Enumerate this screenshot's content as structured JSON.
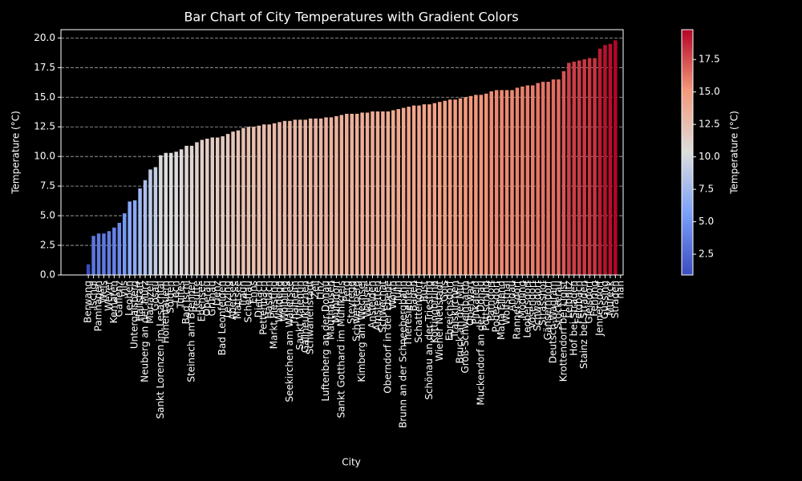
{
  "chart_data": {
    "type": "bar",
    "title": "Bar Chart of City Temperatures with Gradient Colors",
    "x_label": "City",
    "y_label": "Temperature (°C)",
    "categories": [
      "Berwang",
      "Ischgl",
      "Pamhagen",
      "Wels",
      "Weyer",
      "Kematen",
      "Gaflenz",
      "Vils",
      "Leoben",
      "Untergaisberg",
      "Hallstatt",
      "Neuberg an der Mürz",
      "Mariazell",
      "Gosau",
      "Sankt Lorenzen im Lesachtal",
      "Hohentauern",
      "Sölden",
      "Lech",
      "Tulfes",
      "Bad Ischl",
      "Steinach am Brenner",
      "Reutte",
      "Ebensee",
      "Oberau",
      "Grünau",
      "Lienz",
      "Bad Leonfelden",
      "Lenzing",
      "Abersee",
      "Mattsee",
      "Traun",
      "Scheffau",
      "Enns",
      "Dietach",
      "Pettenbach",
      "Haslach",
      "Markt Piesting",
      "Waldegg",
      "Wölbling",
      "Seekirchen am Wallersee",
      "Thalheim",
      "Sankt Valentin",
      "Gallneukirchen",
      "Schwanenstadt",
      "Zell",
      "Linz",
      "Luftenberg an der Donau",
      "Mauthausen",
      "Mühldorf",
      "Sankt Gotthard im Mühlkreis",
      "Perg",
      "Steyregg",
      "Schwertberg",
      "Kimberg am Wechsel",
      "Wallsee",
      "Ansfelden",
      "Amstetten",
      "Schwechat",
      "Oberndorf in der Ebene",
      "Wörth",
      "Tulln",
      "Brunn an der Schneebergbahn",
      "Theresienfeld",
      "Baden",
      "Schattendorf",
      "Rust",
      "Schönau an der Triesting",
      "Kottingbrunn",
      "Wiener Neustadt",
      "Gols",
      "Ebreichsdorf",
      "Traiskirchen",
      "Bruck an der Mur",
      "Groß-Schweinbarth",
      "Oberwart",
      "Pinkafeld",
      "Muckendorf an der Donau",
      "Pöttsching",
      "Parndorf",
      "Podersdorf",
      "Maria Ellend",
      "Wolfsthal",
      "Andau",
      "Rannersdorf",
      "Mödling",
      "Leobersdorf",
      "Vösendorf",
      "Schwadorf",
      "Strasshof",
      "Gänserndorf",
      "Deutsch-Wagram",
      "Stockerau",
      "Krottendorf bei Ligist",
      "Leibnitz",
      "Hof bei Straden",
      "Feldbach",
      "Stainz bei Straden",
      "Gleisdorf",
      "Fehring",
      "Jennersdorf",
      "Güssing",
      "Mureck",
      "Straden",
      "nan"
    ],
    "values": [
      0.9,
      3.3,
      3.5,
      3.5,
      3.7,
      4.0,
      4.4,
      5.2,
      6.2,
      6.3,
      7.3,
      8.0,
      8.9,
      9.1,
      10.1,
      10.3,
      10.3,
      10.4,
      10.6,
      10.9,
      10.9,
      11.2,
      11.4,
      11.5,
      11.6,
      11.6,
      11.7,
      11.9,
      12.1,
      12.2,
      12.4,
      12.5,
      12.5,
      12.6,
      12.7,
      12.7,
      12.8,
      12.9,
      13.0,
      13.0,
      13.1,
      13.1,
      13.1,
      13.2,
      13.2,
      13.2,
      13.3,
      13.3,
      13.4,
      13.5,
      13.6,
      13.6,
      13.6,
      13.7,
      13.7,
      13.8,
      13.8,
      13.8,
      13.8,
      13.9,
      14.0,
      14.1,
      14.2,
      14.3,
      14.3,
      14.4,
      14.4,
      14.5,
      14.6,
      14.7,
      14.8,
      14.8,
      14.9,
      15.0,
      15.1,
      15.2,
      15.2,
      15.3,
      15.5,
      15.6,
      15.6,
      15.6,
      15.6,
      15.8,
      15.9,
      16.0,
      16.0,
      16.2,
      16.3,
      16.3,
      16.5,
      16.5,
      17.2,
      17.9,
      18.0,
      18.1,
      18.2,
      18.3,
      18.3,
      19.1,
      19.4,
      19.5,
      19.8,
      null
    ],
    "ylim": [
      0,
      20.7
    ],
    "yticks": [
      {
        "value": 0,
        "label": "0.0"
      },
      2.5,
      {
        "value": 5,
        "label": "5.0"
      },
      7.5,
      {
        "value": 10,
        "label": "10.0"
      },
      12.5,
      {
        "value": 15,
        "label": "15.0"
      },
      17.5,
      {
        "value": 20,
        "label": "20.0"
      }
    ],
    "grid": true,
    "colormap": [
      "#3b4cc0",
      "#7b9ff9",
      "#dddddd",
      "#f49a7b",
      "#b40426"
    ],
    "colorbar": {
      "label": "Temperature (°C)",
      "lim": [
        0.9,
        19.8
      ],
      "ticks": [
        2.5,
        {
          "value": 5,
          "label": "5.0"
        },
        7.5,
        {
          "value": 10,
          "label": "10.0"
        },
        12.5,
        {
          "value": 15,
          "label": "15.0"
        },
        17.5
      ]
    }
  }
}
